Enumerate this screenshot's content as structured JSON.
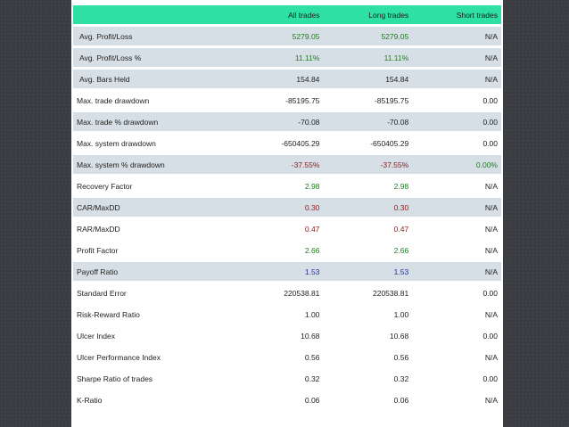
{
  "table": {
    "headers": [
      "",
      "All trades",
      "Long trades",
      "Short trades"
    ],
    "rows": [
      {
        "label": "Avg. Profit/Loss",
        "values": [
          "5279.05",
          "5279.05",
          "N/A"
        ],
        "colors": [
          "green",
          "green",
          "default"
        ],
        "shaded": true,
        "indent": true
      },
      {
        "label": "Avg. Profit/Loss %",
        "values": [
          "11.11%",
          "11.11%",
          "N/A"
        ],
        "colors": [
          "green",
          "green",
          "default"
        ],
        "shaded": true,
        "indent": true
      },
      {
        "label": "Avg. Bars Held",
        "values": [
          "154.84",
          "154.84",
          "N/A"
        ],
        "colors": [
          "default",
          "default",
          "default"
        ],
        "shaded": true,
        "indent": true
      },
      {
        "label": "Max. trade drawdown",
        "values": [
          "-85195.75",
          "-85195.75",
          "0.00"
        ],
        "colors": [
          "default",
          "default",
          "default"
        ],
        "shaded": false,
        "indent": false
      },
      {
        "label": "Max. trade % drawdown",
        "values": [
          "-70.08",
          "-70.08",
          "0.00"
        ],
        "colors": [
          "default",
          "default",
          "default"
        ],
        "shaded": true,
        "indent": false
      },
      {
        "label": "Max. system drawdown",
        "values": [
          "-650405.29",
          "-650405.29",
          "0.00"
        ],
        "colors": [
          "default",
          "default",
          "default"
        ],
        "shaded": false,
        "indent": false
      },
      {
        "label": "Max. system % drawdown",
        "values": [
          "-37.55%",
          "-37.55%",
          "0.00%"
        ],
        "colors": [
          "red",
          "red",
          "green"
        ],
        "shaded": true,
        "indent": false
      },
      {
        "label": "Recovery Factor",
        "values": [
          "2.98",
          "2.98",
          "N/A"
        ],
        "colors": [
          "green",
          "green",
          "default"
        ],
        "shaded": false,
        "indent": false
      },
      {
        "label": "CAR/MaxDD",
        "values": [
          "0.30",
          "0.30",
          "N/A"
        ],
        "colors": [
          "red",
          "red",
          "default"
        ],
        "shaded": true,
        "indent": false
      },
      {
        "label": "RAR/MaxDD",
        "values": [
          "0.47",
          "0.47",
          "N/A"
        ],
        "colors": [
          "red",
          "red",
          "default"
        ],
        "shaded": false,
        "indent": false
      },
      {
        "label": "Profit Factor",
        "values": [
          "2.66",
          "2.66",
          "N/A"
        ],
        "colors": [
          "green",
          "green",
          "default"
        ],
        "shaded": false,
        "indent": false
      },
      {
        "label": "Payoff Ratio",
        "values": [
          "1.53",
          "1.53",
          "N/A"
        ],
        "colors": [
          "blue",
          "blue",
          "default"
        ],
        "shaded": true,
        "indent": false
      },
      {
        "label": "Standard Error",
        "values": [
          "220538.81",
          "220538.81",
          "0.00"
        ],
        "colors": [
          "default",
          "default",
          "default"
        ],
        "shaded": false,
        "indent": false
      },
      {
        "label": "Risk-Reward Ratio",
        "values": [
          "1.00",
          "1.00",
          "N/A"
        ],
        "colors": [
          "default",
          "default",
          "default"
        ],
        "shaded": false,
        "indent": false
      },
      {
        "label": "Ulcer Index",
        "values": [
          "10.68",
          "10.68",
          "0.00"
        ],
        "colors": [
          "default",
          "default",
          "default"
        ],
        "shaded": false,
        "indent": false
      },
      {
        "label": "Ulcer Performance Index",
        "values": [
          "0.56",
          "0.56",
          "N/A"
        ],
        "colors": [
          "default",
          "default",
          "default"
        ],
        "shaded": false,
        "indent": false
      },
      {
        "label": "Sharpe Ratio of trades",
        "values": [
          "0.32",
          "0.32",
          "0.00"
        ],
        "colors": [
          "default",
          "default",
          "default"
        ],
        "shaded": false,
        "indent": false
      },
      {
        "label": "K-Ratio",
        "values": [
          "0.06",
          "0.06",
          "N/A"
        ],
        "colors": [
          "default",
          "default",
          "default"
        ],
        "shaded": false,
        "indent": false
      }
    ]
  },
  "colors": {
    "header_bg": "#2fe0a5",
    "shade_bg": "#d6dfe5",
    "green": "#1e7a1e",
    "red": "#8b1a1a",
    "blue": "#1f2f9a",
    "background": "#3b3d42"
  }
}
